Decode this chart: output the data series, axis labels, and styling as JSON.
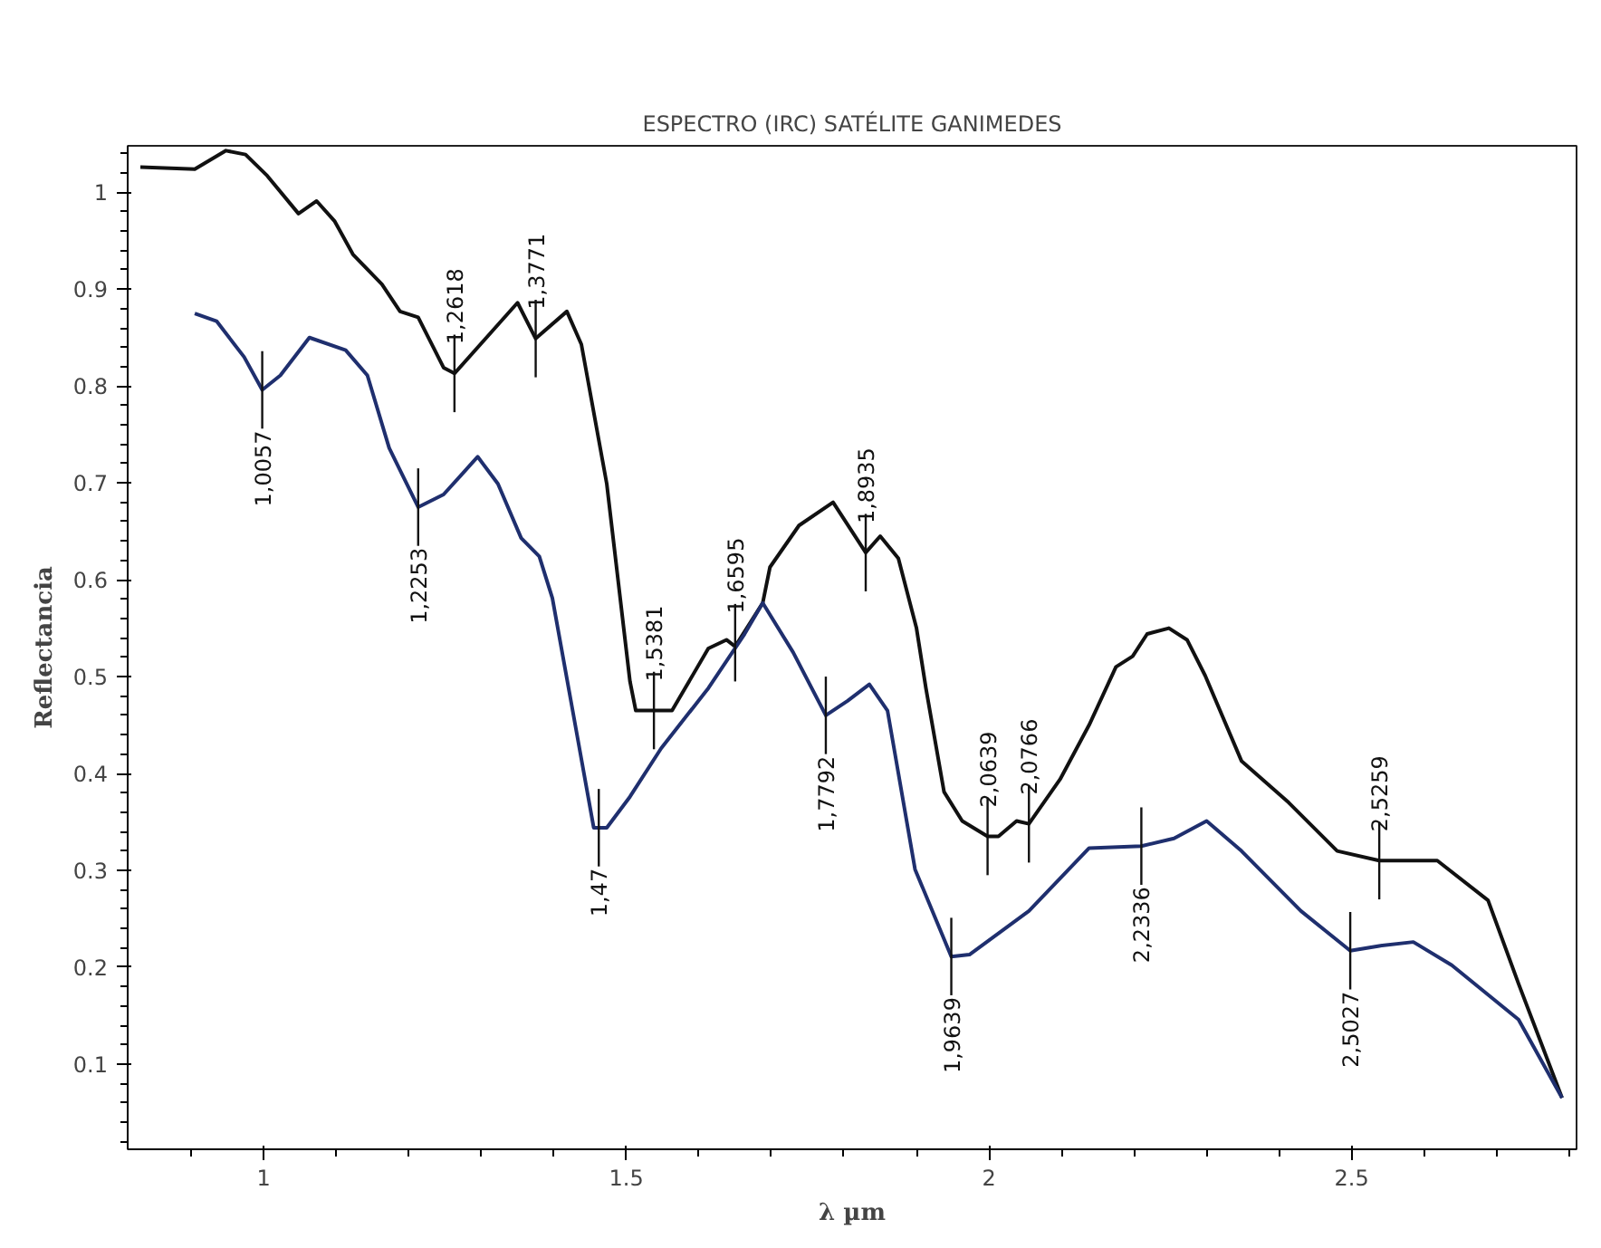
{
  "chart_data": {
    "type": "line",
    "title": "ESPECTRO (IRC) SATÉLITE GANIMEDES",
    "xlabel": "λ µm",
    "ylabel": "Reflectancia",
    "xlim": [
      0.8125,
      2.81
    ],
    "ylim": [
      0.012,
      1.048
    ],
    "xticks": [
      1,
      1.5,
      2,
      2.5
    ],
    "yticks": [
      0.1,
      0.2,
      0.3,
      0.4,
      0.5,
      0.6,
      0.7,
      0.8,
      0.9,
      1
    ],
    "grid": false,
    "marker": "none",
    "line_style": "solid",
    "series": [
      {
        "color": "#111111",
        "x": [
          0.83,
          0.905,
          0.948,
          0.975,
          1.005,
          1.048,
          1.073,
          1.098,
          1.123,
          1.163,
          1.188,
          1.213,
          1.248,
          1.263,
          1.35,
          1.375,
          1.418,
          1.438,
          1.473,
          1.505,
          1.513,
          1.563,
          1.613,
          1.638,
          1.65,
          1.688,
          1.698,
          1.738,
          1.785,
          1.83,
          1.85,
          1.875,
          1.9,
          1.913,
          1.938,
          1.963,
          1.998,
          2.013,
          2.038,
          2.055,
          2.098,
          2.138,
          2.175,
          2.198,
          2.218,
          2.248,
          2.273,
          2.298,
          2.348,
          2.413,
          2.48,
          2.538,
          2.618,
          2.688,
          2.73,
          2.79
        ],
        "values": [
          1.026,
          1.024,
          1.043,
          1.039,
          1.017,
          0.978,
          0.991,
          0.97,
          0.936,
          0.905,
          0.877,
          0.871,
          0.819,
          0.813,
          0.886,
          0.849,
          0.877,
          0.843,
          0.699,
          0.495,
          0.465,
          0.465,
          0.529,
          0.538,
          0.531,
          0.576,
          0.613,
          0.656,
          0.68,
          0.628,
          0.645,
          0.622,
          0.55,
          0.488,
          0.381,
          0.351,
          0.335,
          0.335,
          0.351,
          0.348,
          0.394,
          0.45,
          0.51,
          0.521,
          0.544,
          0.55,
          0.538,
          0.501,
          0.413,
          0.37,
          0.32,
          0.31,
          0.31,
          0.269,
          0.183,
          0.065
        ]
      },
      {
        "color": "#1f2f6e",
        "x": [
          0.905,
          0.935,
          0.973,
          0.998,
          1.023,
          1.063,
          1.113,
          1.143,
          1.173,
          1.213,
          1.248,
          1.295,
          1.323,
          1.355,
          1.38,
          1.398,
          1.425,
          1.455,
          1.473,
          1.505,
          1.548,
          1.613,
          1.663,
          1.688,
          1.73,
          1.775,
          1.805,
          1.835,
          1.86,
          1.898,
          1.948,
          1.973,
          2.055,
          2.138,
          2.21,
          2.255,
          2.3,
          2.348,
          2.43,
          2.498,
          2.538,
          2.585,
          2.638,
          2.73,
          2.79
        ],
        "values": [
          0.875,
          0.867,
          0.83,
          0.796,
          0.811,
          0.85,
          0.837,
          0.811,
          0.736,
          0.675,
          0.688,
          0.727,
          0.699,
          0.643,
          0.624,
          0.581,
          0.469,
          0.344,
          0.344,
          0.376,
          0.426,
          0.488,
          0.544,
          0.576,
          0.525,
          0.46,
          0.475,
          0.492,
          0.465,
          0.301,
          0.211,
          0.213,
          0.258,
          0.323,
          0.325,
          0.333,
          0.351,
          0.32,
          0.258,
          0.217,
          0.222,
          0.226,
          0.202,
          0.146,
          0.065
        ]
      }
    ],
    "annotations": [
      {
        "text": "1,0057",
        "x": 0.998,
        "y": 0.796
      },
      {
        "text": "1,2253",
        "x": 1.213,
        "y": 0.675
      },
      {
        "text": "1,2618",
        "x": 1.263,
        "y": 0.813
      },
      {
        "text": "1,3771",
        "x": 1.375,
        "y": 0.849
      },
      {
        "text": "1,47",
        "x": 1.462,
        "y": 0.344
      },
      {
        "text": "1,5381",
        "x": 1.538,
        "y": 0.465
      },
      {
        "text": "1,6595",
        "x": 1.65,
        "y": 0.535
      },
      {
        "text": "1,7792",
        "x": 1.775,
        "y": 0.46
      },
      {
        "text": "1,8935",
        "x": 1.83,
        "y": 0.628
      },
      {
        "text": "1,9639",
        "x": 1.948,
        "y": 0.211
      },
      {
        "text": "2,0639",
        "x": 1.998,
        "y": 0.335
      },
      {
        "text": "2,0766",
        "x": 2.055,
        "y": 0.348
      },
      {
        "text": "2,2336",
        "x": 2.21,
        "y": 0.325
      },
      {
        "text": "2,5027",
        "x": 2.498,
        "y": 0.217
      },
      {
        "text": "2,5259",
        "x": 2.538,
        "y": 0.31
      }
    ]
  }
}
